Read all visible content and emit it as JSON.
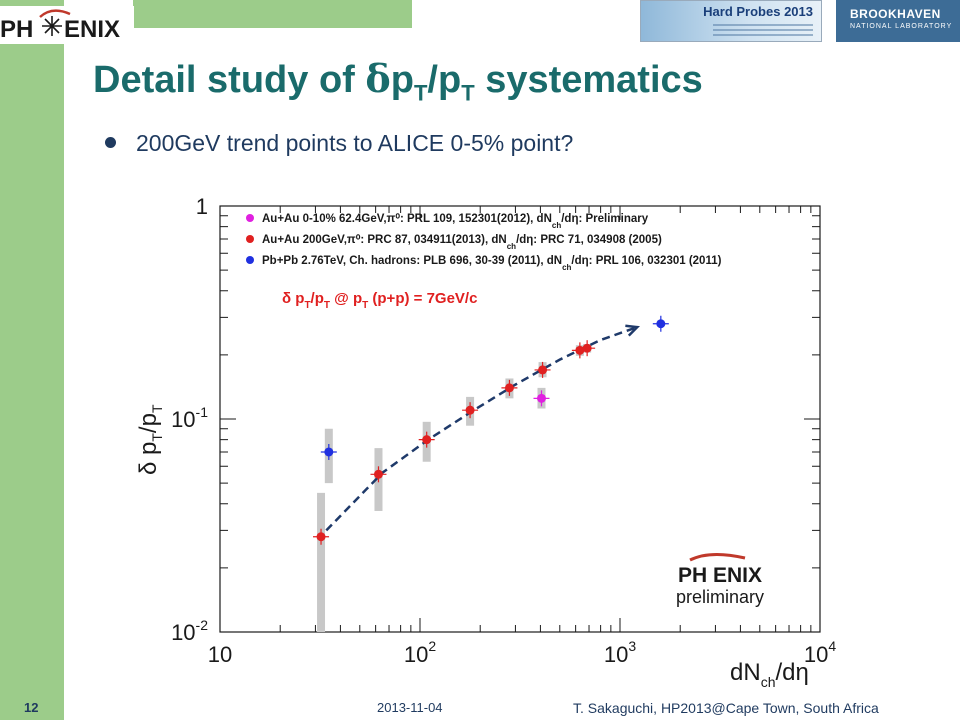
{
  "header": {
    "logo_text": "PH ENIX",
    "conference": "Hard Probes 2013",
    "lab_name": "BROOKHAVEN",
    "lab_sub": "NATIONAL LABORATORY"
  },
  "slide": {
    "title_main": "Detail study of ",
    "title_delta": "δ",
    "title_p": "p",
    "title_sub_T1": "T",
    "title_slash": "/p",
    "title_sub_T2": "T",
    "title_end": " systematics",
    "bullet": "200GeV trend points to ALICE 0-5% point?"
  },
  "chart_data": {
    "type": "scatter",
    "xscale": "log",
    "yscale": "log",
    "xlim": [
      10,
      10000
    ],
    "ylim": [
      0.01,
      1
    ],
    "xticks": [
      "10",
      "10",
      "10",
      "10"
    ],
    "xtick_exponents": [
      "",
      "2",
      "3",
      "4"
    ],
    "yticks": [
      "10",
      "10",
      "1"
    ],
    "ytick_exponents": [
      "-2",
      "-1",
      ""
    ],
    "xlabel": "dN",
    "xlabel_sub": "ch",
    "xlabel_end": "/dη",
    "ylabel": "δ p",
    "ylabel_sub1": "T",
    "ylabel_mid": "/p",
    "ylabel_sub2": "T",
    "annotation": "δ p",
    "annotation_sub1": "T",
    "annotation_mid": "/p",
    "annotation_sub2": "T",
    "annotation_mid2": " @ p",
    "annotation_sub3": "T",
    "annotation_end": " (p+p) = 7GeV/c",
    "watermark_top": "PH ENIX",
    "watermark_bottom": "preliminary",
    "legend": [
      {
        "text": "Au+Au 0-10% 62.4GeV,π⁰: PRL 109, 152301(2012), dN",
        "sub": "ch",
        "tail": "/dη: Preliminary",
        "color": "#e020e0"
      },
      {
        "text": "Au+Au 200GeV,π⁰: PRC 87, 034911(2013), dN",
        "sub": "ch",
        "tail": "/dη: PRC 71, 034908 (2005)",
        "color": "#e02020"
      },
      {
        "text": "Pb+Pb 2.76TeV, Ch. hadrons: PLB 696, 30-39 (2011), dN",
        "sub": "ch",
        "tail": "/dη: PRL 106, 032301 (2011)",
        "color": "#2030e0"
      }
    ],
    "series": [
      {
        "name": "Au+Au 0-10% 62.4GeV",
        "color": "#e020e0",
        "points": [
          {
            "x": 405,
            "y": 0.125,
            "sys_lo": 0.112,
            "sys_hi": 0.14
          }
        ]
      },
      {
        "name": "Au+Au 200GeV",
        "color": "#e02020",
        "points": [
          {
            "x": 32,
            "y": 0.028,
            "sys_lo": 0.01,
            "sys_hi": 0.045
          },
          {
            "x": 62,
            "y": 0.055,
            "sys_lo": 0.037,
            "sys_hi": 0.073
          },
          {
            "x": 108,
            "y": 0.08,
            "sys_lo": 0.063,
            "sys_hi": 0.097
          },
          {
            "x": 178,
            "y": 0.11,
            "sys_lo": 0.093,
            "sys_hi": 0.127
          },
          {
            "x": 280,
            "y": 0.14,
            "sys_lo": 0.125,
            "sys_hi": 0.155
          },
          {
            "x": 410,
            "y": 0.17,
            "sys_lo": 0.157,
            "sys_hi": 0.185
          },
          {
            "x": 630,
            "y": 0.21,
            "sys_lo": 0.198,
            "sys_hi": 0.222
          },
          {
            "x": 685,
            "y": 0.215,
            "sys_lo": 0.205,
            "sys_hi": 0.225
          }
        ]
      },
      {
        "name": "Pb+Pb 2.76TeV",
        "color": "#2030e0",
        "points": [
          {
            "x": 35,
            "y": 0.07,
            "sys_lo": 0.05,
            "sys_hi": 0.09
          },
          {
            "x": 1600,
            "y": 0.28,
            "sys_lo": 0.28,
            "sys_hi": 0.28
          }
        ]
      }
    ],
    "trend_line": [
      {
        "x": 34,
        "y": 0.03
      },
      {
        "x": 65,
        "y": 0.056
      },
      {
        "x": 110,
        "y": 0.08
      },
      {
        "x": 180,
        "y": 0.108
      },
      {
        "x": 300,
        "y": 0.145
      },
      {
        "x": 500,
        "y": 0.19
      },
      {
        "x": 800,
        "y": 0.235
      },
      {
        "x": 1220,
        "y": 0.27
      }
    ]
  },
  "footer": {
    "page_number": "12",
    "date": "2013-11-04",
    "author": "T. Sakaguchi, HP2013@Cape Town, South Africa"
  }
}
